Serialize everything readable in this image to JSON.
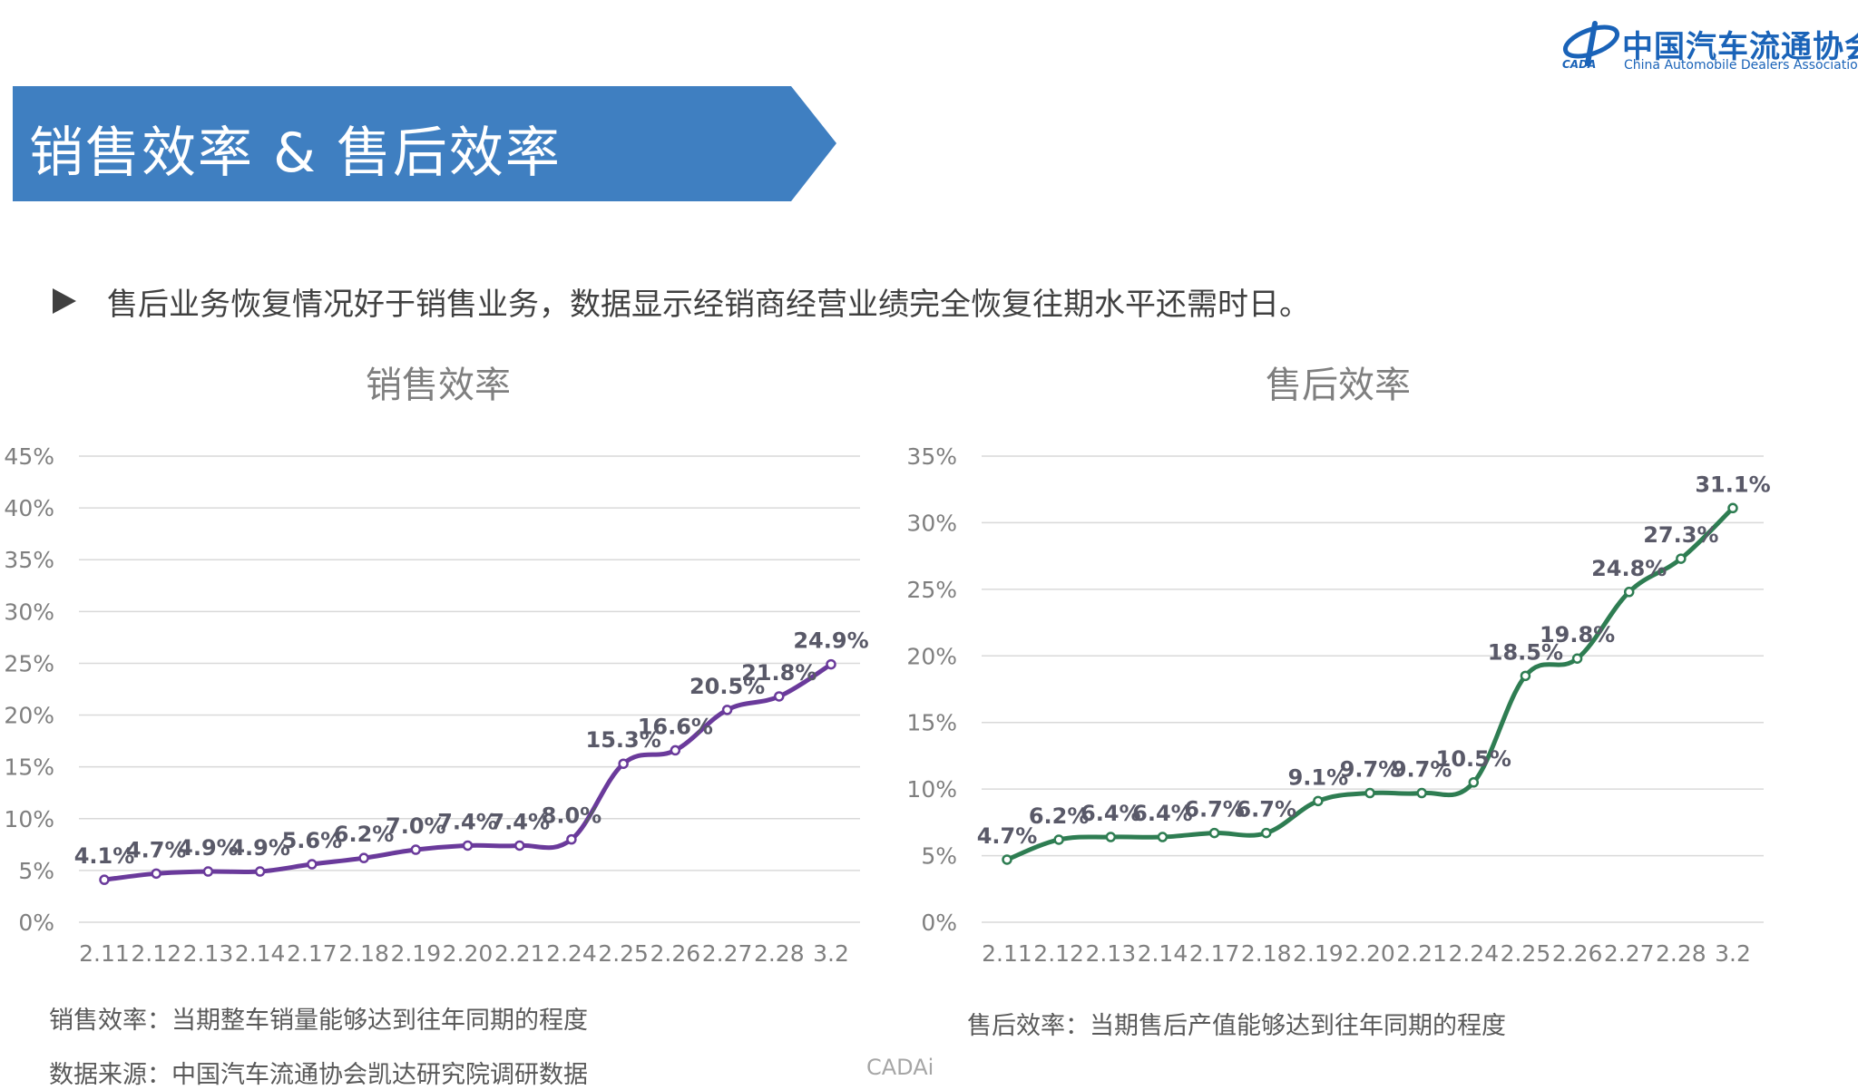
{
  "logo": {
    "name_cn": "中国汽车流通协会",
    "name_en": "China Automobile Dealers Association",
    "abbr": "CADA"
  },
  "banner": {
    "title": "销售效率 & 售后效率",
    "color": "#3f7fc1"
  },
  "bullet": {
    "text": "售后业务恢复情况好于销售业务，数据显示经销商经营业绩完全恢复往期水平还需时日。"
  },
  "chart_data": [
    {
      "type": "line",
      "title": "销售效率",
      "categories": [
        "2.11",
        "2.12",
        "2.13",
        "2.14",
        "2.17",
        "2.18",
        "2.19",
        "2.20",
        "2.21",
        "2.24",
        "2.25",
        "2.26",
        "2.27",
        "2.28",
        "3.2"
      ],
      "values": [
        4.1,
        4.7,
        4.9,
        4.9,
        5.6,
        6.2,
        7.0,
        7.4,
        7.4,
        8.0,
        15.3,
        16.6,
        20.5,
        21.8,
        24.9
      ],
      "labels": [
        "4.1%",
        "4.7%",
        "4.9%",
        "4.9%",
        "5.6%",
        "6.2%",
        "7.0%",
        "7.4%",
        "7.4%",
        "8.0%",
        "15.3%",
        "16.6%",
        "20.5%",
        "21.8%",
        "24.9%"
      ],
      "ylim": [
        0,
        45
      ],
      "yticks": [
        "0%",
        "5%",
        "10%",
        "15%",
        "20%",
        "25%",
        "30%",
        "35%",
        "40%",
        "45%"
      ],
      "color": "#6a3a9b",
      "grid": true,
      "legend": "none"
    },
    {
      "type": "line",
      "title": "售后效率",
      "categories": [
        "2.11",
        "2.12",
        "2.13",
        "2.14",
        "2.17",
        "2.18",
        "2.19",
        "2.20",
        "2.21",
        "2.24",
        "2.25",
        "2.26",
        "2.27",
        "2.28",
        "3.2"
      ],
      "values": [
        4.7,
        6.2,
        6.4,
        6.4,
        6.7,
        6.7,
        9.1,
        9.7,
        9.7,
        10.5,
        18.5,
        19.8,
        24.8,
        27.3,
        31.1
      ],
      "labels": [
        "4.7%",
        "6.2%",
        "6.4%",
        "6.4%",
        "6.7%",
        "6.7%",
        "9.1%",
        "9.7%",
        "9.7%",
        "10.5%",
        "18.5%",
        "19.8%",
        "24.8%",
        "27.3%",
        "31.1%"
      ],
      "ylim": [
        0,
        35
      ],
      "yticks": [
        "0%",
        "5%",
        "10%",
        "15%",
        "20%",
        "25%",
        "30%",
        "35%"
      ],
      "color": "#2e7d52",
      "grid": true,
      "legend": "none"
    }
  ],
  "footnotes": {
    "sales_def": "销售效率：当期整车销量能够达到往年同期的程度",
    "aftersales_def": "售后效率：当期售后产值能够达到往年同期的程度",
    "source": "数据来源：中国汽车流通协会凯达研究院调研数据",
    "brand": "CADAi"
  }
}
